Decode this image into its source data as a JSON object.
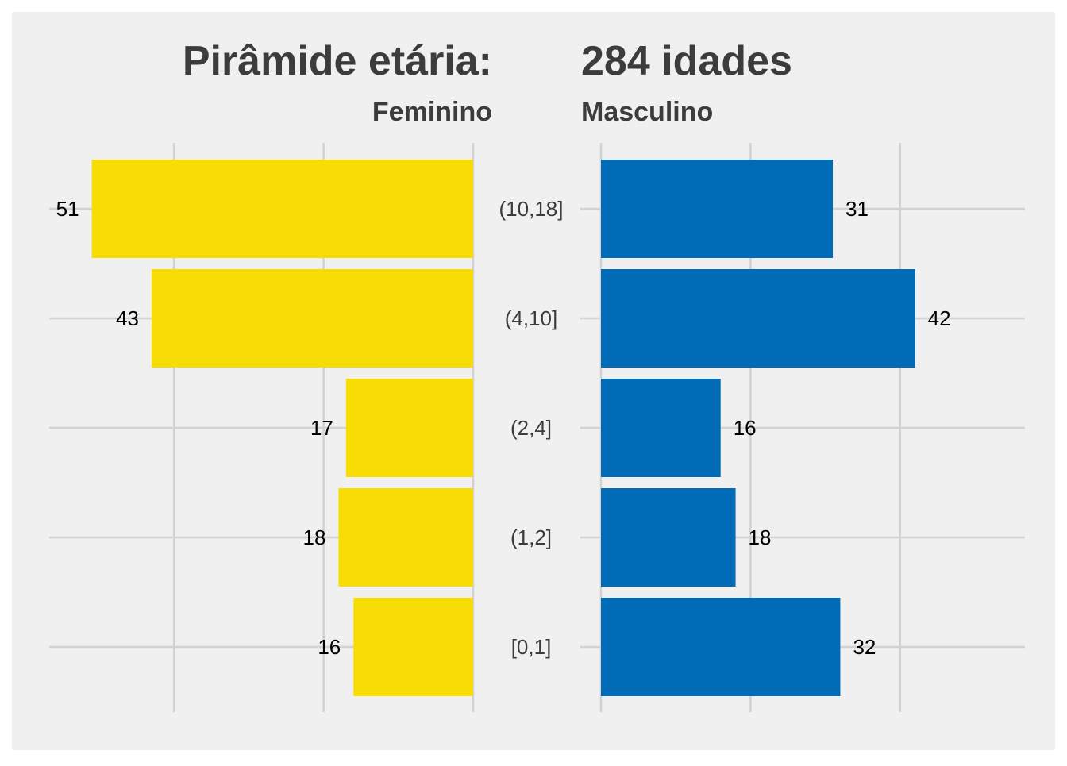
{
  "chart_data": {
    "type": "bar",
    "orientation": "horizontal-pyramid",
    "title_left": "Pirâmide etária:",
    "title_right": "284 idades",
    "categories": [
      "(10,18]",
      "(4,10]",
      "(2,4]",
      "(1,2]",
      "[0,1]"
    ],
    "series": [
      {
        "name": "Feminino",
        "values": [
          51,
          43,
          17,
          18,
          16
        ],
        "color": "#F7DC06"
      },
      {
        "name": "Masculino",
        "values": [
          31,
          42,
          16,
          18,
          32
        ],
        "color": "#006CB7"
      }
    ],
    "grid": true
  },
  "colors": {
    "panel_background": "#F0F0F0",
    "gridline": "#D2D2D2",
    "text": "#3C3C3C"
  }
}
